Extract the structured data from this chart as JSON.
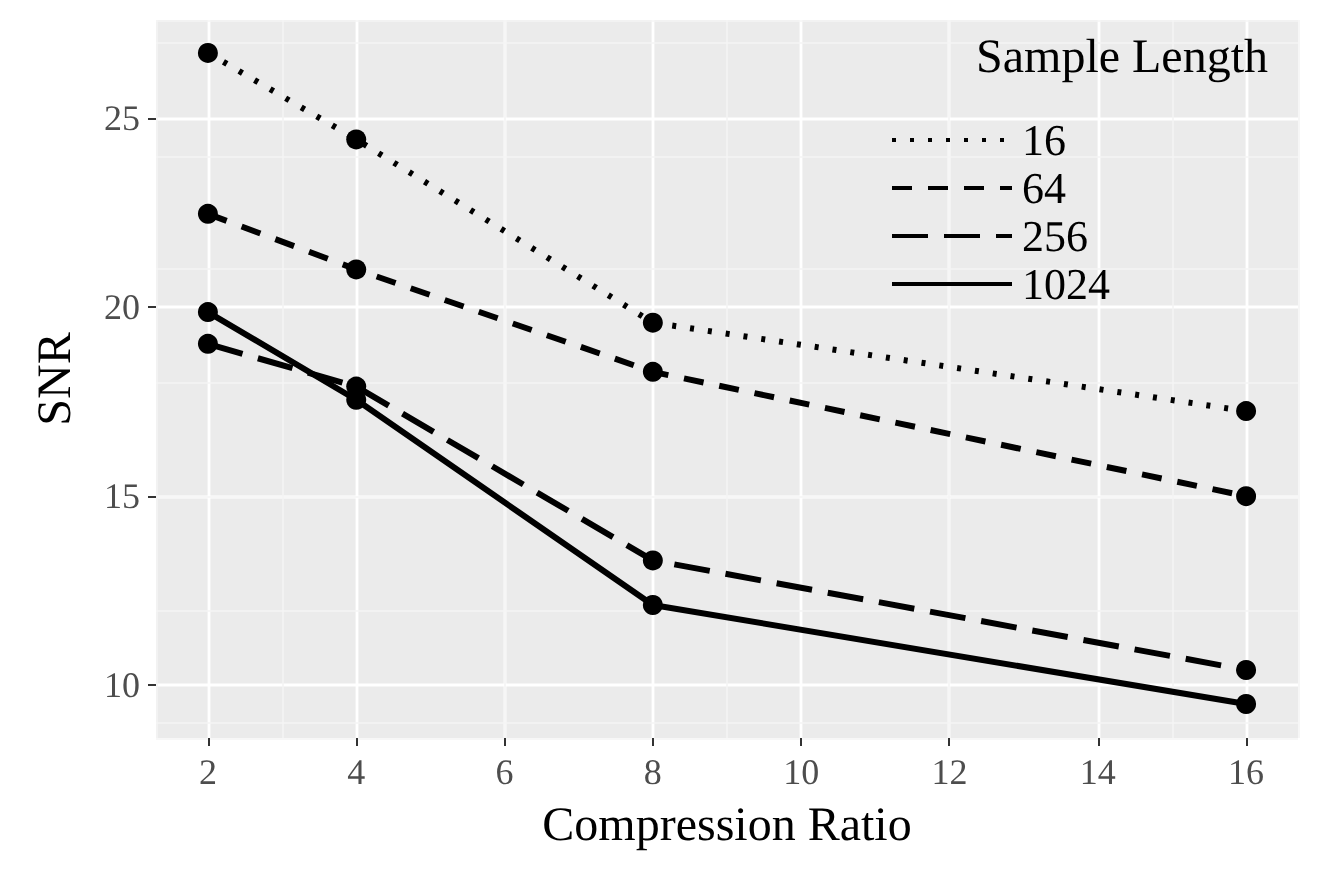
{
  "chart_data": {
    "type": "line",
    "xlabel": "Compression Ratio",
    "ylabel": "SNR",
    "legend_title": "Sample Length",
    "x": [
      2,
      4,
      8,
      16
    ],
    "series": [
      {
        "name": "16",
        "color": "#000000",
        "line_style": "dotted",
        "values": [
          26.73,
          24.44,
          19.59,
          17.25
        ]
      },
      {
        "name": "64",
        "color": "#000000",
        "line_style": "dashed",
        "values": [
          22.47,
          21.0,
          18.29,
          15.0
        ]
      },
      {
        "name": "256",
        "color": "#000000",
        "line_style": "dashed",
        "values": [
          19.03,
          17.9,
          13.3,
          10.4
        ]
      },
      {
        "name": "1024",
        "color": "#000000",
        "line_style": "solid",
        "values": [
          19.87,
          17.55,
          12.12,
          9.5
        ]
      }
    ],
    "xlim": [
      1.3,
      16.7
    ],
    "xticks": [
      2,
      4,
      6,
      8,
      10,
      12,
      14,
      16
    ],
    "ylim": [
      8.6,
      27.6
    ],
    "yticks": [
      10,
      15,
      20,
      25
    ],
    "grid": true,
    "legend": "top right",
    "marker": "circle"
  }
}
